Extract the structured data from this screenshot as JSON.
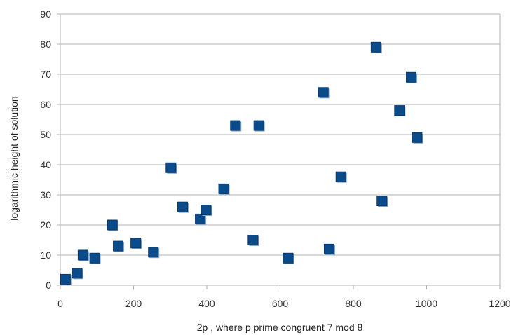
{
  "chart_data": {
    "type": "scatter",
    "title": "",
    "xlabel": "2p , where p prime congruent 7 mod 8",
    "ylabel": "logarithmic height of solution",
    "xlim": [
      0,
      1200
    ],
    "ylim": [
      0,
      90
    ],
    "xticks": [
      "0",
      "200",
      "400",
      "600",
      "800",
      "1000",
      "1200"
    ],
    "yticks": [
      "0",
      "10",
      "20",
      "30",
      "40",
      "50",
      "60",
      "70",
      "80",
      "90"
    ],
    "grid": "horizontal",
    "legend": "none",
    "marker": "square",
    "marker_color": "#0b4b8a",
    "points": [
      {
        "x": 14,
        "y": 2
      },
      {
        "x": 46,
        "y": 4
      },
      {
        "x": 62,
        "y": 10
      },
      {
        "x": 94,
        "y": 9
      },
      {
        "x": 142,
        "y": 20
      },
      {
        "x": 158,
        "y": 13
      },
      {
        "x": 206,
        "y": 14
      },
      {
        "x": 254,
        "y": 11
      },
      {
        "x": 302,
        "y": 39
      },
      {
        "x": 334,
        "y": 26
      },
      {
        "x": 382,
        "y": 22
      },
      {
        "x": 398,
        "y": 25
      },
      {
        "x": 446,
        "y": 32
      },
      {
        "x": 478,
        "y": 53
      },
      {
        "x": 526,
        "y": 15
      },
      {
        "x": 542,
        "y": 53
      },
      {
        "x": 622,
        "y": 9
      },
      {
        "x": 718,
        "y": 64
      },
      {
        "x": 734,
        "y": 12
      },
      {
        "x": 766,
        "y": 36
      },
      {
        "x": 862,
        "y": 79
      },
      {
        "x": 878,
        "y": 28
      },
      {
        "x": 926,
        "y": 58
      },
      {
        "x": 958,
        "y": 69
      },
      {
        "x": 974,
        "y": 49
      }
    ]
  }
}
